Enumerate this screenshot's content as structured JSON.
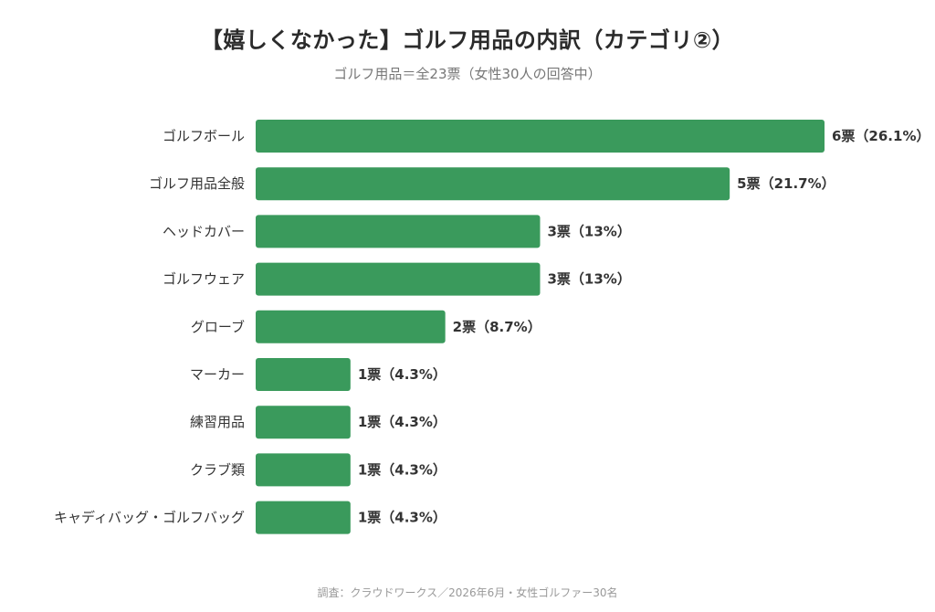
{
  "title": "【嬉しくなかった】ゴルフ用品の内訳（カテゴリ②）",
  "subtitle": "ゴルフ用品＝全23票（女性30人の回答中）",
  "footer": "調査：クラウドワークス／2026年6月・女性ゴルファー30名",
  "colors": {
    "bar": "#3a9a5c",
    "text": "#333333"
  },
  "chart_data": {
    "type": "bar",
    "orientation": "horizontal",
    "categories": [
      "ゴルフボール",
      "ゴルフ用品全般",
      "ヘッドカバー",
      "ゴルフウェア",
      "グローブ",
      "マーカー",
      "練習用品",
      "クラブ類",
      "キャディバッグ・ゴルフバッグ"
    ],
    "values": [
      6,
      5,
      3,
      3,
      2,
      1,
      1,
      1,
      1
    ],
    "value_labels": [
      "6票（26.1%）",
      "5票（21.7%）",
      "3票（13%）",
      "3票（13%）",
      "2票（8.7%）",
      "1票（4.3%）",
      "1票（4.3%）",
      "1票（4.3%）",
      "1票（4.3%）"
    ],
    "xlim": [
      0,
      6
    ],
    "grid": false,
    "legend": "none"
  }
}
